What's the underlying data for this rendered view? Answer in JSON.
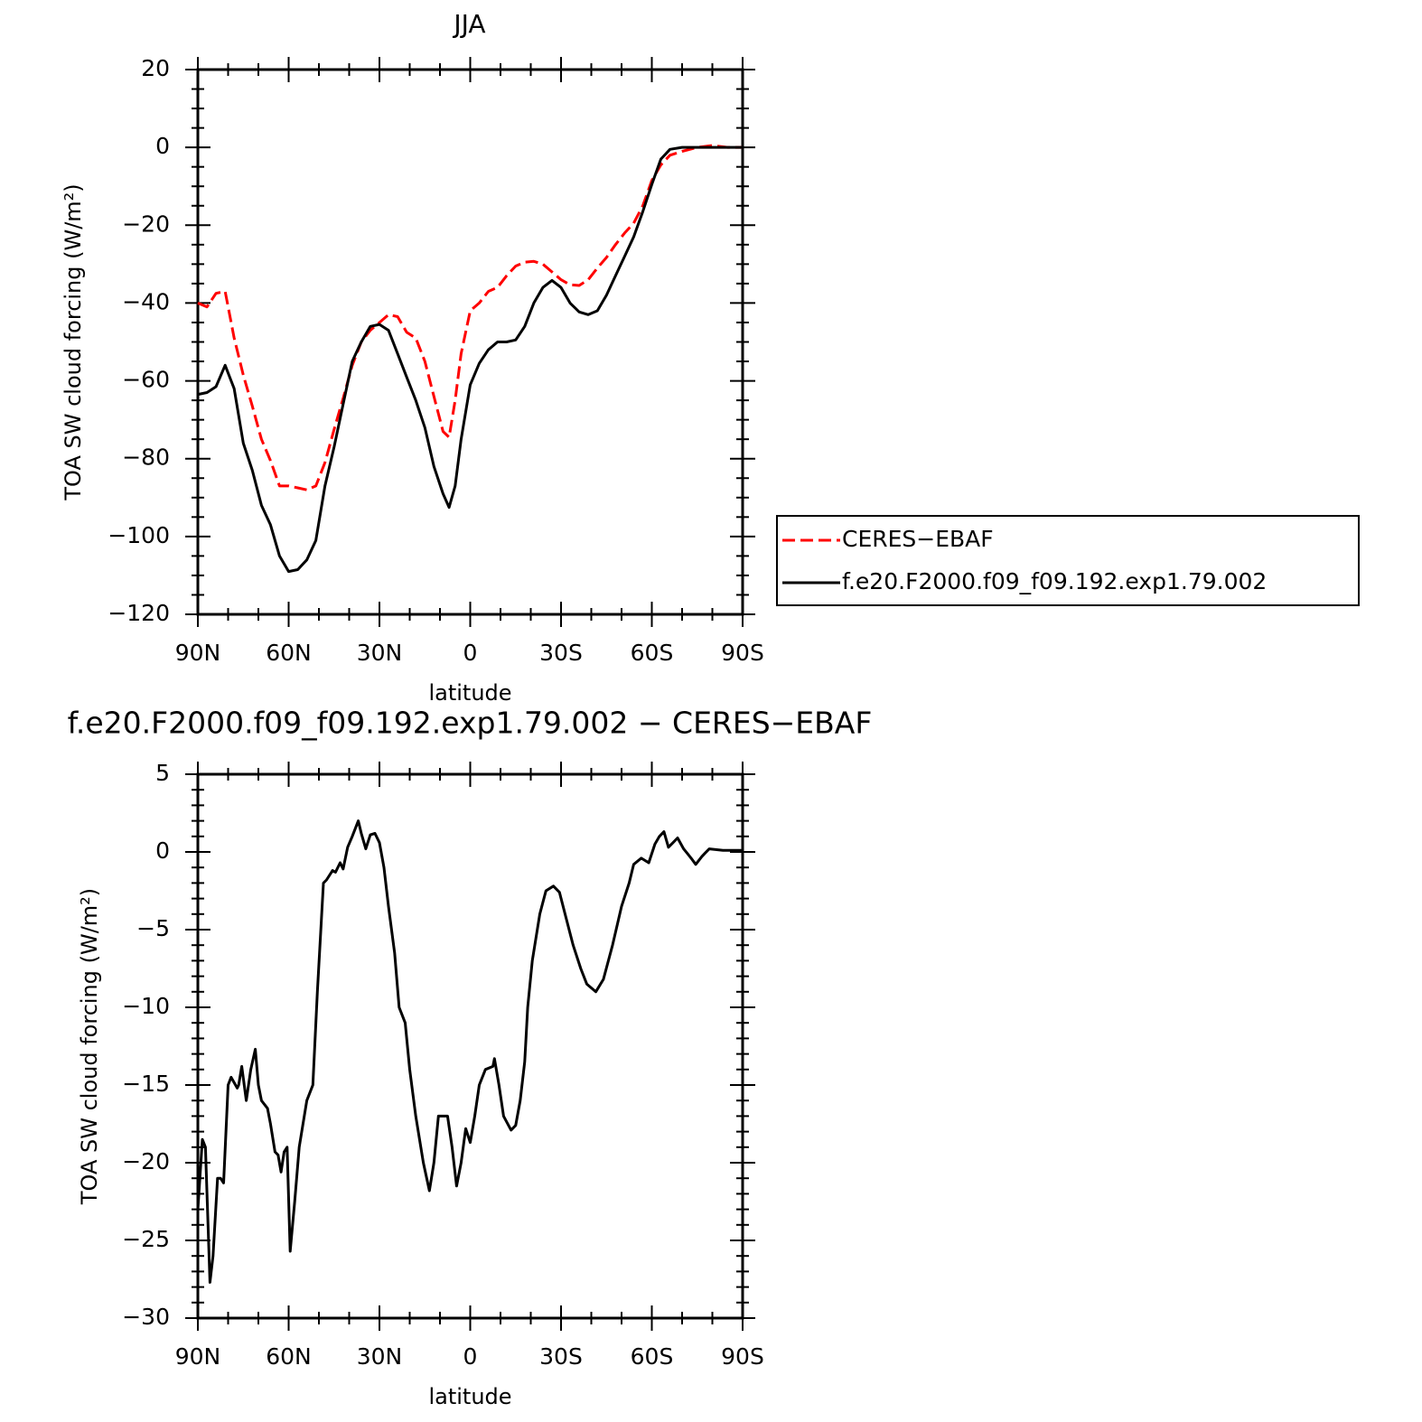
{
  "chart_data": [
    {
      "type": "line",
      "title": "JJA",
      "xlabel": "latitude",
      "ylabel": "TOA SW cloud forcing (W/m²)",
      "legend": "right",
      "xlim": [
        90,
        -90
      ],
      "xticks": [
        {
          "value": 90,
          "label": "90N"
        },
        {
          "value": 60,
          "label": "60N"
        },
        {
          "value": 30,
          "label": "30N"
        },
        0,
        {
          "value": -30,
          "label": "30S"
        },
        {
          "value": -60,
          "label": "60S"
        },
        {
          "value": -90,
          "label": "90S"
        }
      ],
      "ylim": [
        -120,
        20
      ],
      "yticks": [
        {
          "value": -120,
          "label": "−120"
        },
        {
          "value": -100,
          "label": "−100"
        },
        {
          "value": -80,
          "label": "−80"
        },
        {
          "value": -60,
          "label": "−60"
        },
        {
          "value": -40,
          "label": "−40"
        },
        {
          "value": -20,
          "label": "−20"
        },
        0,
        20
      ],
      "x": [
        90,
        87,
        84,
        81,
        78,
        75,
        72,
        69,
        66,
        63,
        60,
        57,
        54,
        51,
        48,
        45,
        42,
        39,
        36,
        33,
        30,
        27,
        24,
        21,
        18,
        15,
        12,
        9,
        7,
        5,
        3,
        0,
        -3,
        -6,
        -9,
        -12,
        -15,
        -18,
        -21,
        -24,
        -27,
        -30,
        -33,
        -36,
        -39,
        -42,
        -45,
        -48,
        -51,
        -54,
        -57,
        -60,
        -63,
        -66,
        -70,
        -75,
        -80,
        -85,
        -90
      ],
      "series": [
        {
          "name": "CERES−EBAF",
          "color": "#ff0000",
          "style": "dashed",
          "values": [
            -40,
            -41,
            -37.5,
            -37,
            -49,
            -58.5,
            -66.5,
            -75,
            -80.5,
            -87,
            -87,
            -87.5,
            -88,
            -87,
            -81,
            -72.5,
            -64.5,
            -56,
            -50,
            -47,
            -45,
            -43,
            -43.5,
            -47.5,
            -49,
            -55,
            -64,
            -73,
            -74.5,
            -65,
            -53,
            -42,
            -40,
            -37,
            -36,
            -33,
            -30.5,
            -29.5,
            -29.3,
            -30,
            -32,
            -34,
            -35.3,
            -35.5,
            -34,
            -31,
            -28.3,
            -25,
            -22,
            -19.5,
            -15,
            -8.5,
            -4.5,
            -2,
            -1,
            0,
            0.5,
            0,
            0
          ]
        },
        {
          "name": "f.e20.F2000.f09_f09.192.exp1.79.002",
          "color": "#000000",
          "style": "solid",
          "values": [
            -63.5,
            -63,
            -61.5,
            -56,
            -62,
            -76,
            -83,
            -92,
            -97,
            -105,
            -109,
            -108.5,
            -106,
            -101,
            -87,
            -77,
            -66,
            -55,
            -50,
            -46,
            -45.5,
            -47,
            -53,
            -59,
            -65,
            -72,
            -82,
            -89,
            -92.5,
            -87,
            -75,
            -61,
            -55.5,
            -52,
            -50,
            -50,
            -49.5,
            -46,
            -40,
            -36,
            -34.2,
            -36,
            -40,
            -42.3,
            -43,
            -42,
            -38,
            -33,
            -28,
            -23,
            -16.5,
            -9.5,
            -3,
            -0.5,
            0,
            0,
            0,
            0,
            0
          ]
        }
      ]
    },
    {
      "type": "line",
      "title": "f.e20.F2000.f09_f09.192.exp1.79.002 − CERES−EBAF",
      "xlabel": "latitude",
      "ylabel": "TOA SW cloud forcing (W/m²)",
      "color": "#000000",
      "xlim": [
        90,
        -90
      ],
      "xticks": [
        {
          "value": 90,
          "label": "90N"
        },
        {
          "value": 60,
          "label": "60N"
        },
        {
          "value": 30,
          "label": "30N"
        },
        0,
        {
          "value": -30,
          "label": "30S"
        },
        {
          "value": -60,
          "label": "60S"
        },
        {
          "value": -90,
          "label": "90S"
        }
      ],
      "ylim": [
        -30,
        5
      ],
      "yticks": [
        {
          "value": -30,
          "label": "−30"
        },
        {
          "value": -25,
          "label": "−25"
        },
        {
          "value": -20,
          "label": "−20"
        },
        {
          "value": -15,
          "label": "−15"
        },
        {
          "value": -10,
          "label": "−10"
        },
        {
          "value": -5,
          "label": "−5"
        },
        0,
        5
      ],
      "x": [
        90,
        88.5,
        87.5,
        86,
        85,
        83.5,
        82.5,
        81.5,
        80,
        79,
        77,
        76.5,
        75.5,
        74,
        72.5,
        71,
        70,
        69,
        67,
        66,
        64.5,
        63.5,
        62.5,
        61.5,
        60.5,
        59.5,
        58,
        56.5,
        54,
        52,
        50.5,
        48.5,
        47.5,
        45.5,
        44.5,
        43,
        42,
        40.5,
        39,
        37,
        36,
        34.5,
        33,
        31.5,
        30,
        28.5,
        27,
        25,
        23.5,
        21.5,
        20,
        18,
        15.5,
        13.5,
        12,
        10.5,
        9,
        7.5,
        6,
        4.5,
        3,
        1.5,
        0,
        -1.5,
        -3,
        -5,
        -7.5,
        -8,
        -9.5,
        -11,
        -13.5,
        -15,
        -16.5,
        -18,
        -19,
        -20.5,
        -23,
        -25,
        -27.5,
        -29.5,
        -32,
        -34,
        -36.5,
        -38.5,
        -41.5,
        -44,
        -47,
        -50,
        -52.5,
        -54,
        -56.5,
        -59,
        -61,
        -62.5,
        -64,
        -65.5,
        -67,
        -68.5,
        -70.5,
        -73,
        -74.5,
        -76.5,
        -77.5,
        -79,
        -83.5,
        -90
      ],
      "values": [
        -23,
        -18.5,
        -19,
        -27.7,
        -26,
        -21,
        -21,
        -21.3,
        -15,
        -14.5,
        -15.2,
        -15,
        -13.8,
        -16,
        -14,
        -12.7,
        -15,
        -16,
        -16.5,
        -17.5,
        -19.3,
        -19.5,
        -20.6,
        -19.3,
        -19,
        -25.7,
        -22.5,
        -19,
        -16,
        -15,
        -9,
        -2,
        -1.8,
        -1.2,
        -1.3,
        -0.7,
        -1.1,
        0.3,
        1,
        2,
        1.2,
        0.2,
        1.1,
        1.2,
        0.6,
        -1,
        -3.5,
        -6.5,
        -10,
        -11,
        -14,
        -17,
        -20,
        -21.8,
        -20,
        -17,
        -17,
        -17,
        -19,
        -21.5,
        -20,
        -17.8,
        -18.7,
        -17,
        -15,
        -14,
        -13.8,
        -13.3,
        -15,
        -17,
        -17.9,
        -17.6,
        -16,
        -13.5,
        -10,
        -7,
        -4,
        -2.5,
        -2.2,
        -2.6,
        -4.5,
        -6,
        -7.5,
        -8.5,
        -9,
        -8.2,
        -6,
        -3.5,
        -2,
        -0.8,
        -0.4,
        -0.7,
        0.5,
        1,
        1.3,
        0.3,
        0.6,
        0.9,
        0.2,
        -0.4,
        -0.8,
        -0.3,
        -0.1,
        0.2,
        0.1,
        0.1
      ]
    }
  ]
}
